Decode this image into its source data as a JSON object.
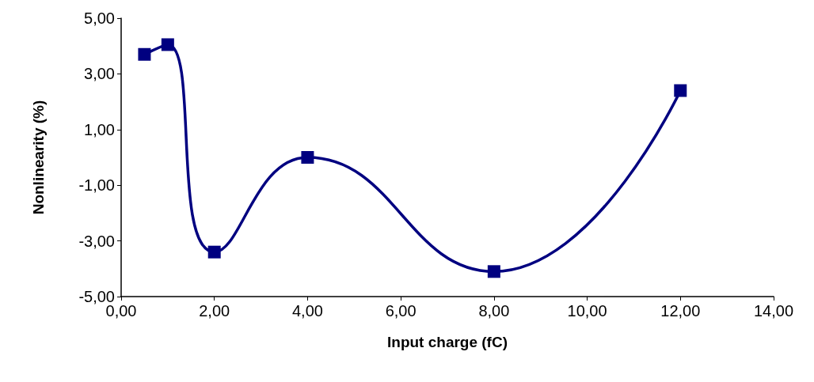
{
  "chart_data": {
    "type": "line",
    "xlabel": "Input charge (fC)",
    "ylabel": "Nonlinearity (%)",
    "x": [
      0.5,
      1,
      2,
      4,
      8,
      12
    ],
    "series": [
      {
        "color": "#000080",
        "values": [
          3.7,
          4.05,
          -3.4,
          0,
          -4.1,
          2.4
        ]
      }
    ],
    "xlim": [
      0,
      14
    ],
    "xticks": [
      {
        "value": 0,
        "label": "0,00"
      },
      {
        "value": 2,
        "label": "2,00"
      },
      {
        "value": 4,
        "label": "4,00"
      },
      {
        "value": 6,
        "label": "6,00"
      },
      {
        "value": 8,
        "label": "8,00"
      },
      {
        "value": 10,
        "label": "10,00"
      },
      {
        "value": 12,
        "label": "12,00"
      },
      {
        "value": 14,
        "label": "14,00"
      }
    ],
    "ylim": [
      -5,
      5
    ],
    "yticks": [
      {
        "value": -5,
        "label": "-5,00"
      },
      {
        "value": -3,
        "label": "-3,00"
      },
      {
        "value": -1,
        "label": "-1,00"
      },
      {
        "value": 1,
        "label": "1,00"
      },
      {
        "value": 3,
        "label": "3,00"
      },
      {
        "value": 5,
        "label": "5,00"
      }
    ],
    "grid": false,
    "marker": "square",
    "line_style": "solid"
  }
}
